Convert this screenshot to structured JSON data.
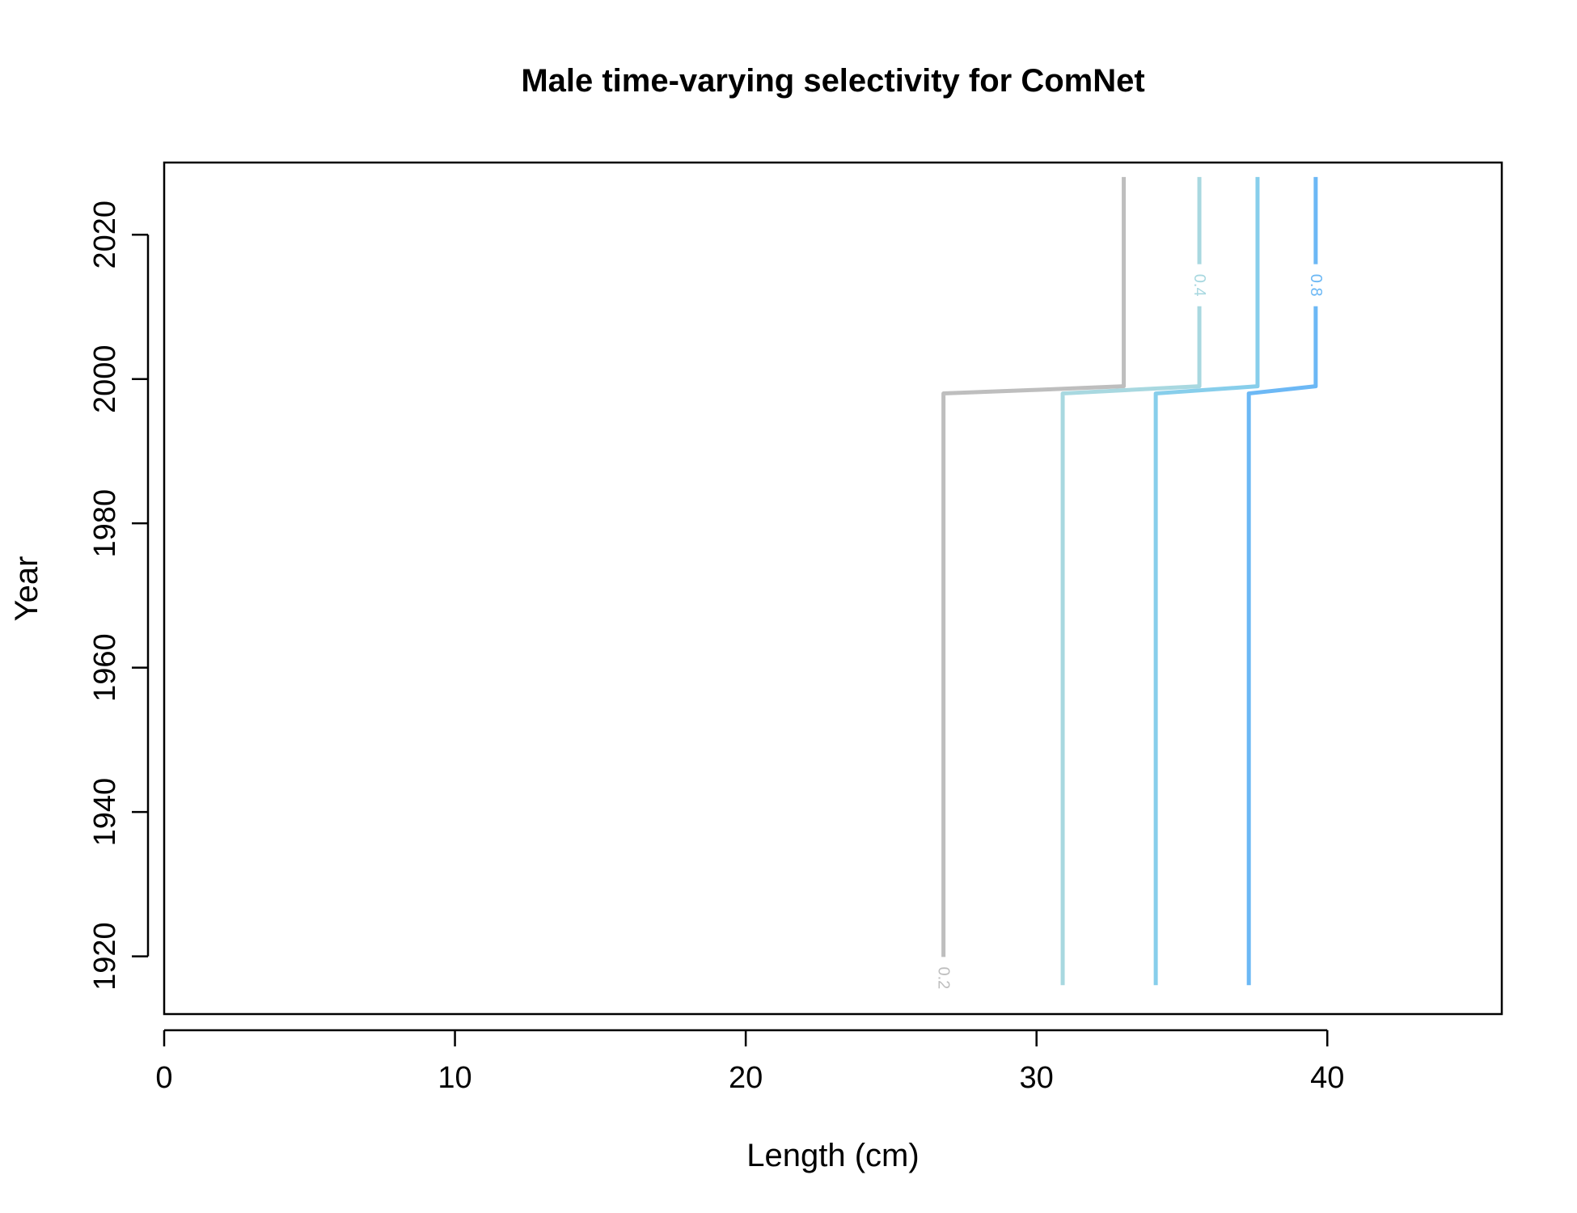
{
  "chart_data": {
    "type": "line",
    "title": "Male time-varying selectivity for ComNet",
    "xlabel": "Length (cm)",
    "ylabel": "Year",
    "xlim": [
      0,
      46
    ],
    "ylim": [
      1912,
      2030
    ],
    "x_ticks": [
      0,
      10,
      20,
      30,
      40
    ],
    "y_ticks": [
      1920,
      1940,
      1960,
      1980,
      2000,
      2020
    ],
    "grid": false,
    "legend": "none",
    "series": [
      {
        "label": "0.2",
        "color": "#bebebe",
        "x": [
          26.8,
          26.8,
          30.0,
          33.0,
          33.0
        ],
        "y": [
          1918,
          1998,
          1998.5,
          1999,
          2028
        ],
        "label_at": {
          "x": 26.8,
          "y": 1917
        }
      },
      {
        "label": "",
        "color": "#a8d8e0",
        "x": [
          30.9,
          30.9,
          35.6,
          35.6
        ],
        "y": [
          1916,
          1998,
          1999,
          2028
        ]
      },
      {
        "label": "0.4",
        "color": "#a8d8e0",
        "x": [
          35.6
        ],
        "y": [
          2013
        ],
        "label_at": {
          "x": 35.6,
          "y": 2013
        }
      },
      {
        "label": "",
        "color": "#87ceeb",
        "x": [
          34.1,
          34.1,
          37.6,
          37.6
        ],
        "y": [
          1916,
          1998,
          1999,
          2028
        ]
      },
      {
        "label": "",
        "color": "#6cb8f5",
        "x": [
          37.3,
          37.3,
          39.6,
          39.6
        ],
        "y": [
          1916,
          1998,
          1999,
          2028
        ]
      },
      {
        "label": "0.8",
        "color": "#6cb8f5",
        "x": [
          39.6
        ],
        "y": [
          2013
        ],
        "label_at": {
          "x": 39.6,
          "y": 2013
        }
      }
    ]
  }
}
